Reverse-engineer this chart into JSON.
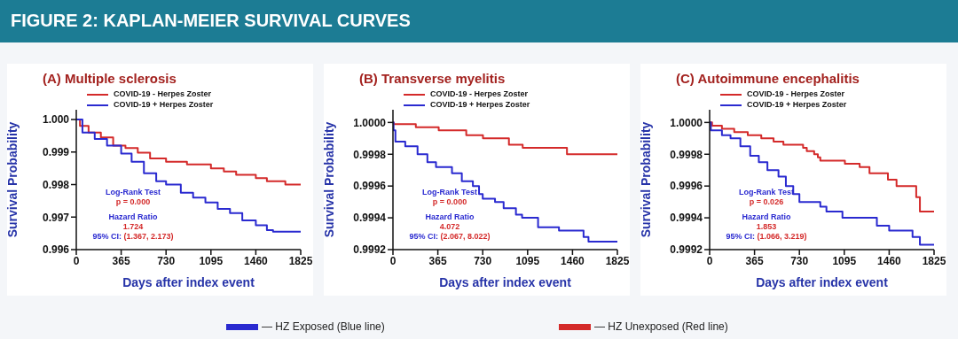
{
  "chart_data": [
    {
      "type": "step",
      "title": "(A) Multiple sclerosis",
      "xlabel": "Days after index event",
      "ylabel": "Survival Probability",
      "legend": "top",
      "xlim": [
        0,
        1825
      ],
      "xticks": [
        0,
        365,
        730,
        1095,
        1460,
        1825
      ],
      "ylim": [
        0.996,
        1.0003
      ],
      "yticks": [
        {
          "value": 0.996,
          "label": "0.996"
        },
        {
          "value": 0.997,
          "label": "0.997"
        },
        {
          "value": 0.998,
          "label": "0.998"
        },
        {
          "value": 0.999,
          "label": "0.999"
        },
        {
          "value": 1,
          "label": "1.000"
        }
      ],
      "annotations": [
        "Log-Rank Test",
        "p = 0.000",
        "Hazard Ratio",
        "1.724",
        "95% CI:",
        "(1.367, 2.173)",
        "FIGURE 2: KAPLAN-MEIER SURVIVAL CURVES",
        "— HZ Exposed (Blue line)",
        "— HZ Unexposed (Red line)"
      ],
      "series": [
        {
          "name": "COVID-19 - Herpes Zoster",
          "color": "#d42a2a",
          "x": [
            0,
            30,
            100,
            200,
            300,
            400,
            500,
            600,
            730,
            900,
            1095,
            1200,
            1300,
            1460,
            1550,
            1700,
            1825
          ],
          "values": [
            1,
            0.9998,
            0.9996,
            0.99945,
            0.9992,
            0.99912,
            0.99898,
            0.9988,
            0.9987,
            0.99862,
            0.9985,
            0.9984,
            0.9983,
            0.9982,
            0.9981,
            0.998,
            0.998
          ]
        },
        {
          "name": "COVID-19 + Herpes Zoster",
          "color": "#2a2ad0",
          "x": [
            0,
            50,
            150,
            250,
            365,
            450,
            550,
            650,
            730,
            850,
            950,
            1050,
            1150,
            1250,
            1350,
            1460,
            1550,
            1600,
            1825
          ],
          "values": [
            1,
            0.9996,
            0.9994,
            0.9992,
            0.99895,
            0.9987,
            0.99835,
            0.9981,
            0.998,
            0.99775,
            0.9976,
            0.99745,
            0.99725,
            0.99712,
            0.9969,
            0.99675,
            0.9966,
            0.99655,
            0.99655
          ]
        }
      ]
    },
    {
      "type": "step",
      "title": "(B) Transverse myelitis",
      "xlabel": "Days after index event",
      "ylabel": "Survival Probability",
      "legend": "top",
      "xlim": [
        0,
        1825
      ],
      "xticks": [
        0,
        365,
        730,
        1095,
        1460,
        1825
      ],
      "ylim": [
        0.9992,
        1.00008
      ],
      "yticks": [
        {
          "value": 0.9992,
          "label": "0.9992"
        },
        {
          "value": 0.9994,
          "label": "0.9994"
        },
        {
          "value": 0.9996,
          "label": "0.9996"
        },
        {
          "value": 0.9998,
          "label": "0.9998"
        },
        {
          "value": 1,
          "label": "1.0000"
        }
      ],
      "annotations": [
        "Log-Rank Test",
        "p = 0.000",
        "Hazard Ratio",
        "4.072",
        "95% CI:",
        "(2.067, 8.022)"
      ],
      "series": [
        {
          "name": "COVID-19 - Herpes Zoster",
          "color": "#d42a2a",
          "x": [
            0,
            5,
            186,
            372,
            596,
            732,
            943,
            1055,
            1415,
            1825
          ],
          "values": [
            1,
            0.99999,
            0.99997,
            0.99995,
            0.99992,
            0.9999,
            0.99986,
            0.99984,
            0.9998,
            0.9998
          ]
        },
        {
          "name": "COVID-19 + Herpes Zoster",
          "color": "#2a2ad0",
          "x": [
            0,
            5,
            20,
            100,
            200,
            280,
            350,
            480,
            560,
            650,
            700,
            730,
            830,
            900,
            1000,
            1050,
            1180,
            1350,
            1550,
            1590,
            1825
          ],
          "values": [
            1,
            0.99995,
            0.99988,
            0.99985,
            0.9998,
            0.99975,
            0.99972,
            0.99968,
            0.99963,
            0.9996,
            0.99955,
            0.99952,
            0.9995,
            0.99946,
            0.99942,
            0.9994,
            0.99934,
            0.99932,
            0.99928,
            0.99925,
            0.99925
          ]
        }
      ]
    },
    {
      "type": "step",
      "title": "(C) Autoimmune encephalitis",
      "xlabel": "Days after index event",
      "ylabel": "Survival Probability",
      "legend": "top",
      "xlim": [
        0,
        1825
      ],
      "xticks": [
        0,
        365,
        730,
        1095,
        1460,
        1825
      ],
      "ylim": [
        0.9992,
        1.00008
      ],
      "yticks": [
        {
          "value": 0.9992,
          "label": "0.9992"
        },
        {
          "value": 0.9994,
          "label": "0.9994"
        },
        {
          "value": 0.9996,
          "label": "0.9996"
        },
        {
          "value": 0.9998,
          "label": "0.9998"
        },
        {
          "value": 1,
          "label": "1.0000"
        }
      ],
      "annotations": [
        "Log-Rank Test",
        "p = 0.026",
        "Hazard Ratio",
        "1.853",
        "95% CI:",
        "(1.066, 3.219)"
      ],
      "series": [
        {
          "name": "COVID-19 - Herpes Zoster",
          "color": "#d42a2a",
          "x": [
            0,
            20,
            100,
            200,
            310,
            420,
            520,
            600,
            760,
            790,
            850,
            880,
            900,
            1100,
            1220,
            1300,
            1450,
            1520,
            1680,
            1710,
            1825
          ],
          "values": [
            1,
            0.99998,
            0.99996,
            0.99994,
            0.99992,
            0.9999,
            0.99988,
            0.99986,
            0.99984,
            0.99982,
            0.9998,
            0.99978,
            0.99976,
            0.99974,
            0.99972,
            0.99968,
            0.99964,
            0.9996,
            0.99953,
            0.99944,
            0.99944
          ]
        },
        {
          "name": "COVID-19 + Herpes Zoster",
          "color": "#2a2ad0",
          "x": [
            0,
            10,
            100,
            170,
            250,
            330,
            400,
            470,
            560,
            620,
            680,
            730,
            900,
            950,
            1080,
            1360,
            1460,
            1650,
            1710,
            1825
          ],
          "values": [
            1,
            0.99995,
            0.99992,
            0.9999,
            0.99985,
            0.99979,
            0.99975,
            0.9997,
            0.99966,
            0.9996,
            0.99955,
            0.9995,
            0.99947,
            0.99944,
            0.9994,
            0.99935,
            0.99932,
            0.99928,
            0.99923,
            0.99923
          ]
        }
      ]
    }
  ]
}
